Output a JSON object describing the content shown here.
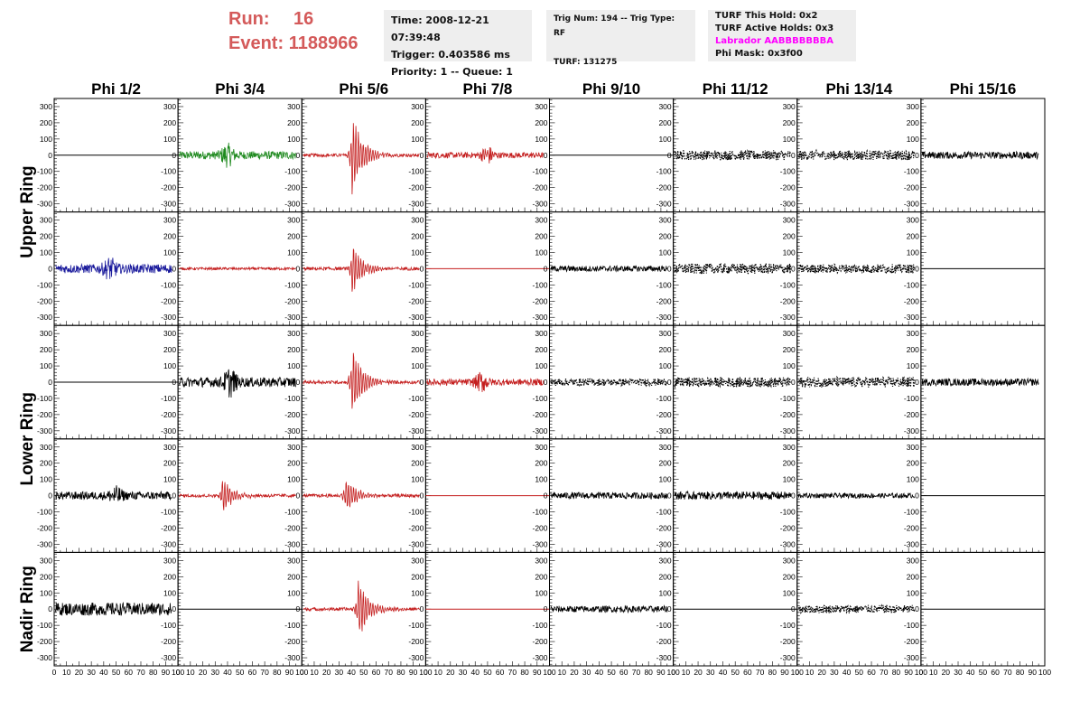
{
  "header": {
    "run_label": "Run:",
    "run_value": "16",
    "event_label": "Event:",
    "event_value": "1188966",
    "box1": [
      "Time: 2008-12-21 07:39:48",
      "Trigger: 0.403586 ms",
      "Priority: 1 -- Queue: 1"
    ],
    "box2": [
      "Trig Num: 194 -- Trig Type: RF",
      "",
      "TURF: 131275"
    ],
    "box3": [
      "TURF This Hold: 0x2",
      "TURF Active Holds: 0x3",
      "Labrador AABBBBBBBA",
      "Phi Mask: 0x3f00"
    ],
    "labrador_color": "#ff00ff"
  },
  "chart_data": {
    "type": "line",
    "columns": [
      "Phi 1/2",
      "Phi 3/4",
      "Phi 5/6",
      "Phi 7/8",
      "Phi 9/10",
      "Phi 11/12",
      "Phi 13/14",
      "Phi 15/16"
    ],
    "row_labels": [
      "Upper Ring",
      "Lower Ring",
      "Nadir Ring"
    ],
    "xlim": [
      0,
      100
    ],
    "ylim": [
      -350,
      350
    ],
    "x_ticks": [
      "0",
      "10",
      "20",
      "30",
      "40",
      "50",
      "60",
      "70",
      "80",
      "90",
      "100"
    ],
    "y_ticks": [
      "300",
      "200",
      "100",
      "0",
      "-100",
      "-200",
      "-300"
    ],
    "colors": {
      "black": "#000000",
      "red": "#c41e1e",
      "green": "#1f8a1f",
      "blue": "#1a1a9c"
    },
    "panels": [
      [
        {
          "style": "flat",
          "color": "black"
        },
        {
          "style": "noise",
          "amp": 25,
          "color": "green",
          "burst": 40,
          "bamp": 55
        },
        {
          "style": "pulse",
          "amp": 320,
          "color": "red",
          "center": 40
        },
        {
          "style": "noise",
          "amp": 18,
          "color": "red",
          "burst": 50,
          "bamp": 45
        },
        {
          "style": "flat",
          "color": "black"
        },
        {
          "style": "noise",
          "amp": 30,
          "color": "black",
          "mode": "dots"
        },
        {
          "style": "noise",
          "amp": 30,
          "color": "black",
          "mode": "dots"
        },
        {
          "style": "noise",
          "amp": 22,
          "color": "black"
        }
      ],
      [
        {
          "style": "noise",
          "amp": 28,
          "color": "blue",
          "burst": 45,
          "bamp": 50
        },
        {
          "style": "noise",
          "amp": 8,
          "color": "red"
        },
        {
          "style": "pulse",
          "amp": 190,
          "color": "red",
          "center": 40
        },
        {
          "style": "flat",
          "color": "red"
        },
        {
          "style": "noise",
          "amp": 18,
          "color": "black"
        },
        {
          "style": "noise",
          "amp": 32,
          "color": "black",
          "mode": "dots"
        },
        {
          "style": "noise",
          "amp": 28,
          "color": "black",
          "mode": "dots"
        },
        {
          "style": "flat",
          "color": "black"
        }
      ],
      [
        {
          "style": "flat",
          "color": "black"
        },
        {
          "style": "noise",
          "amp": 30,
          "color": "black",
          "burst": 42,
          "bamp": 70
        },
        {
          "style": "pulse",
          "amp": 270,
          "color": "red",
          "center": 40
        },
        {
          "style": "noise",
          "amp": 20,
          "color": "red",
          "burst": 45,
          "bamp": 50
        },
        {
          "style": "noise",
          "amp": 22,
          "color": "black",
          "mode": "dots"
        },
        {
          "style": "noise",
          "amp": 30,
          "color": "black",
          "mode": "dots"
        },
        {
          "style": "noise",
          "amp": 32,
          "color": "black",
          "mode": "dots"
        },
        {
          "style": "noise",
          "amp": 22,
          "color": "black"
        }
      ],
      [
        {
          "style": "noise",
          "amp": 25,
          "color": "black",
          "burst": 50,
          "bamp": 40
        },
        {
          "style": "pulse",
          "amp": 140,
          "color": "red",
          "center": 35
        },
        {
          "style": "pulse",
          "amp": 140,
          "color": "red",
          "center": 35
        },
        {
          "style": "flat",
          "color": "red"
        },
        {
          "style": "noise",
          "amp": 20,
          "color": "black"
        },
        {
          "style": "noise",
          "amp": 25,
          "color": "black"
        },
        {
          "style": "noise",
          "amp": 15,
          "color": "black"
        },
        {
          "style": "flat",
          "color": "black"
        }
      ],
      [
        {
          "style": "noise",
          "amp": 40,
          "color": "black"
        },
        {
          "style": "flat",
          "color": "black"
        },
        {
          "style": "pulse",
          "amp": 230,
          "color": "red",
          "center": 45
        },
        {
          "style": "flat",
          "color": "red"
        },
        {
          "style": "noise",
          "amp": 20,
          "color": "black"
        },
        {
          "style": "flat",
          "color": "black"
        },
        {
          "style": "noise",
          "amp": 25,
          "color": "black",
          "mode": "dots"
        },
        {
          "style": "flat",
          "color": "black"
        }
      ]
    ]
  }
}
